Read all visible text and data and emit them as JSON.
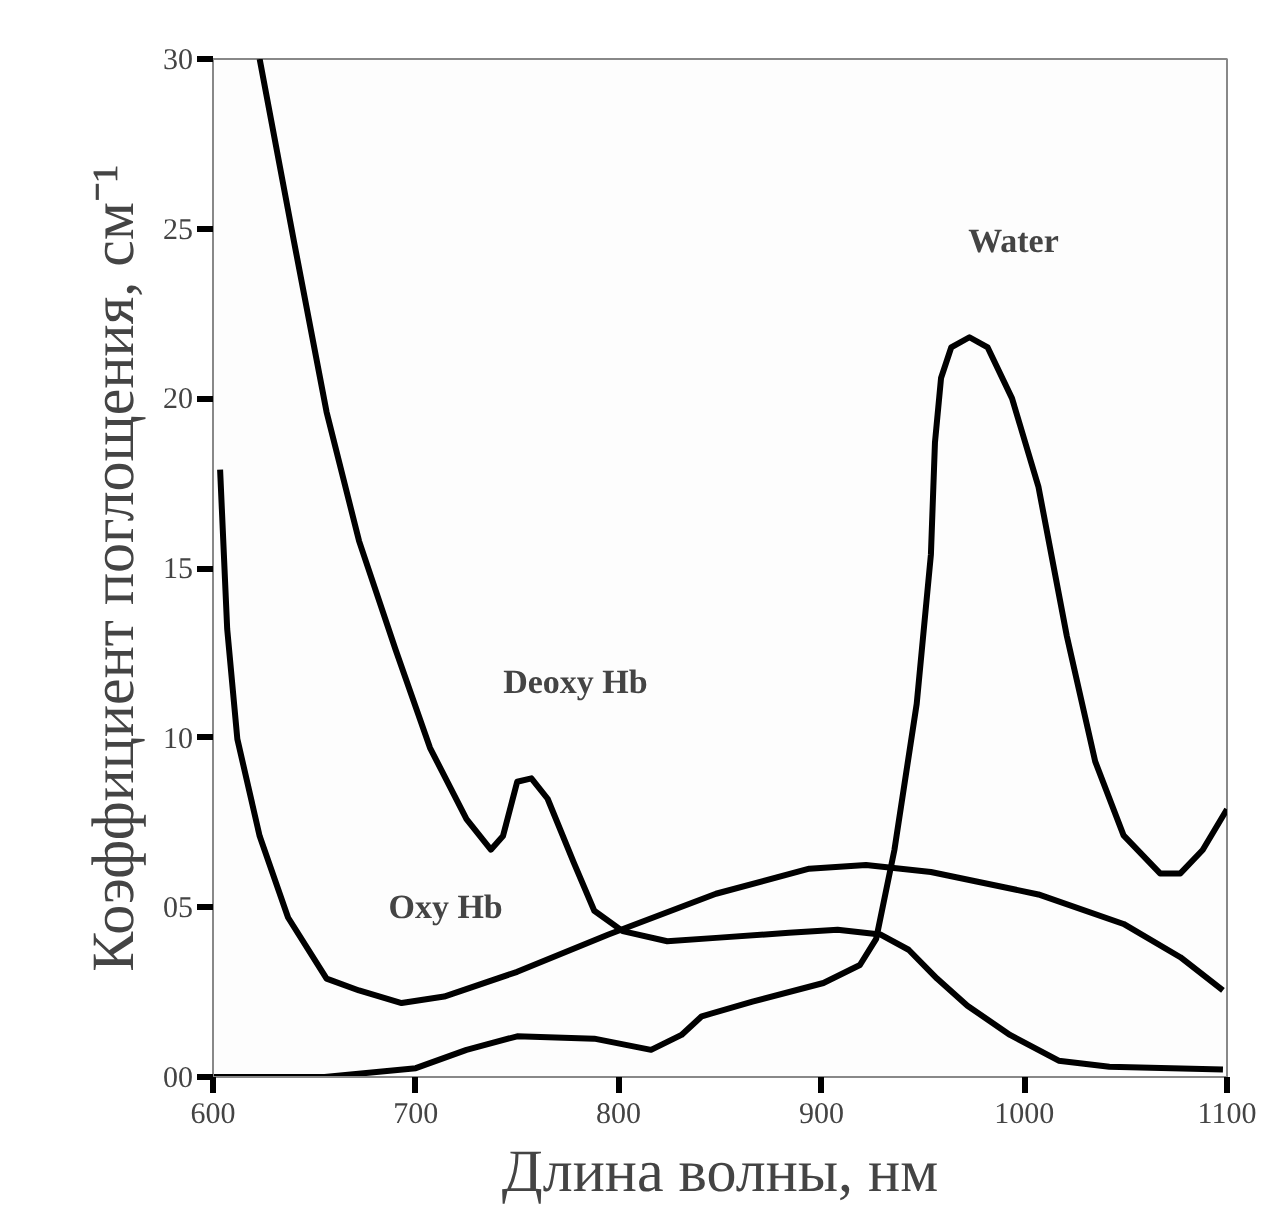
{
  "chart_data": {
    "type": "line",
    "xlabel": "Длина волны, нм",
    "ylabel": "Коэффициент поглощения, см⁻¹",
    "xlim": [
      600,
      1100
    ],
    "ylim": [
      0,
      30
    ],
    "xticks": [
      600,
      700,
      800,
      900,
      1000,
      1100
    ],
    "yticks": [
      {
        "value": 0,
        "label": "00"
      },
      {
        "value": 5,
        "label": "05"
      },
      10,
      15,
      20,
      25,
      30
    ],
    "grid": false,
    "line_style": "solid",
    "series": [
      {
        "color": "#000000",
        "x": [
          623,
          640,
          656,
          672,
          690,
          707,
          725,
          737,
          743,
          750,
          757,
          765,
          778,
          788,
          802,
          824,
          848,
          884,
          908,
          929,
          943,
          957,
          972,
          993,
          1017,
          1042,
          1098
        ],
        "values": [
          30.0,
          24.6,
          19.6,
          15.8,
          12.6,
          9.7,
          7.6,
          6.7,
          7.1,
          8.7,
          8.8,
          8.2,
          6.3,
          4.9,
          4.3,
          4.0,
          4.1,
          4.25,
          4.34,
          4.2,
          3.75,
          2.9,
          2.1,
          1.24,
          0.48,
          0.3,
          0.22
        ]
      },
      {
        "color": "#000000",
        "x": [
          603.5,
          607,
          612,
          623,
          637,
          656,
          672,
          693,
          714,
          750,
          795,
          848,
          894,
          922,
          954,
          1007,
          1049,
          1077,
          1098
        ],
        "values": [
          17.9,
          13.2,
          9.96,
          7.1,
          4.7,
          2.9,
          2.55,
          2.18,
          2.37,
          3.1,
          4.2,
          5.4,
          6.14,
          6.25,
          6.04,
          5.38,
          4.51,
          3.53,
          2.55
        ]
      },
      {
        "color": "#000000",
        "x": [
          600,
          655,
          700,
          725,
          750,
          788,
          816,
          831,
          841,
          866,
          901,
          919,
          927,
          936,
          947,
          954,
          956,
          959,
          964,
          973,
          982,
          994,
          1007,
          1021,
          1035,
          1049,
          1067,
          1077,
          1088,
          1100
        ],
        "values": [
          0,
          0,
          0.26,
          0.8,
          1.2,
          1.13,
          0.8,
          1.24,
          1.79,
          2.22,
          2.77,
          3.3,
          4.07,
          6.69,
          11.0,
          15.4,
          18.7,
          20.6,
          21.5,
          21.8,
          21.5,
          20.0,
          17.4,
          13.0,
          9.3,
          7.12,
          6.0,
          6.0,
          6.69,
          7.89
        ]
      }
    ],
    "annotations": [
      {
        "text": "Deoxy Hb",
        "x": 757,
        "y": 8.8
      },
      {
        "text": "Oxy Hb",
        "x": 693,
        "y": 2.18
      },
      {
        "text": "Water",
        "x": 973,
        "y": 21.8
      }
    ]
  }
}
